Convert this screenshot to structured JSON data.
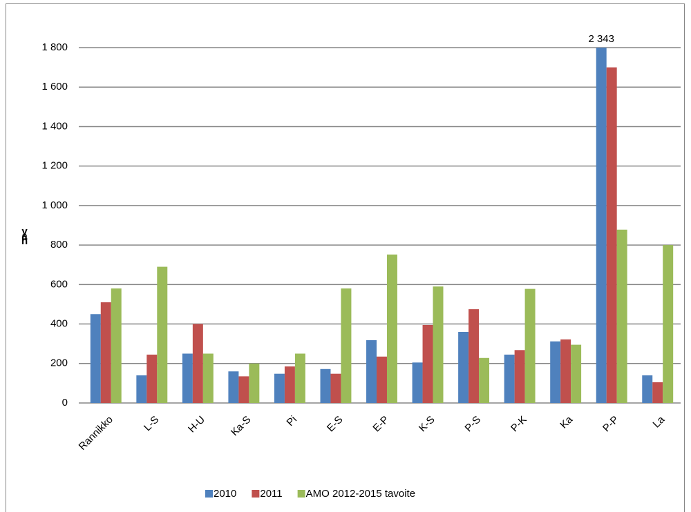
{
  "chart_data": {
    "type": "bar",
    "y_label": "yah",
    "categories": [
      "Rannikko",
      "L-S",
      "H-U",
      "Ka-S",
      "Pi",
      "E-S",
      "E-P",
      "K-S",
      "P-S",
      "P-K",
      "Ka",
      "P-P",
      "La"
    ],
    "series": [
      {
        "name": "2010",
        "color": "#4f81bd",
        "values": [
          450,
          140,
          250,
          160,
          148,
          172,
          318,
          205,
          360,
          245,
          312,
          2343,
          140
        ],
        "value_labels": [
          null,
          null,
          null,
          null,
          null,
          null,
          null,
          null,
          null,
          null,
          null,
          "2 343",
          null
        ]
      },
      {
        "name": "2011",
        "color": "#c0504d",
        "values": [
          510,
          245,
          400,
          135,
          185,
          148,
          235,
          395,
          475,
          268,
          322,
          1700,
          105
        ]
      },
      {
        "name": "AMO 2012-2015 tavoite",
        "color": "#9bbb59",
        "values": [
          580,
          690,
          250,
          200,
          250,
          580,
          752,
          590,
          228,
          578,
          295,
          878,
          800
        ]
      }
    ],
    "ylim": [
      0,
      1800
    ],
    "yticks": [
      0,
      200,
      400,
      600,
      800,
      {
        "value": 1000,
        "label": "1 000"
      },
      {
        "value": 1200,
        "label": "1 200"
      },
      {
        "value": 1400,
        "label": "1 400"
      },
      {
        "value": 1600,
        "label": "1 600"
      },
      {
        "value": 1800,
        "label": "1 800"
      }
    ],
    "grid": true,
    "legend": "bottom"
  }
}
